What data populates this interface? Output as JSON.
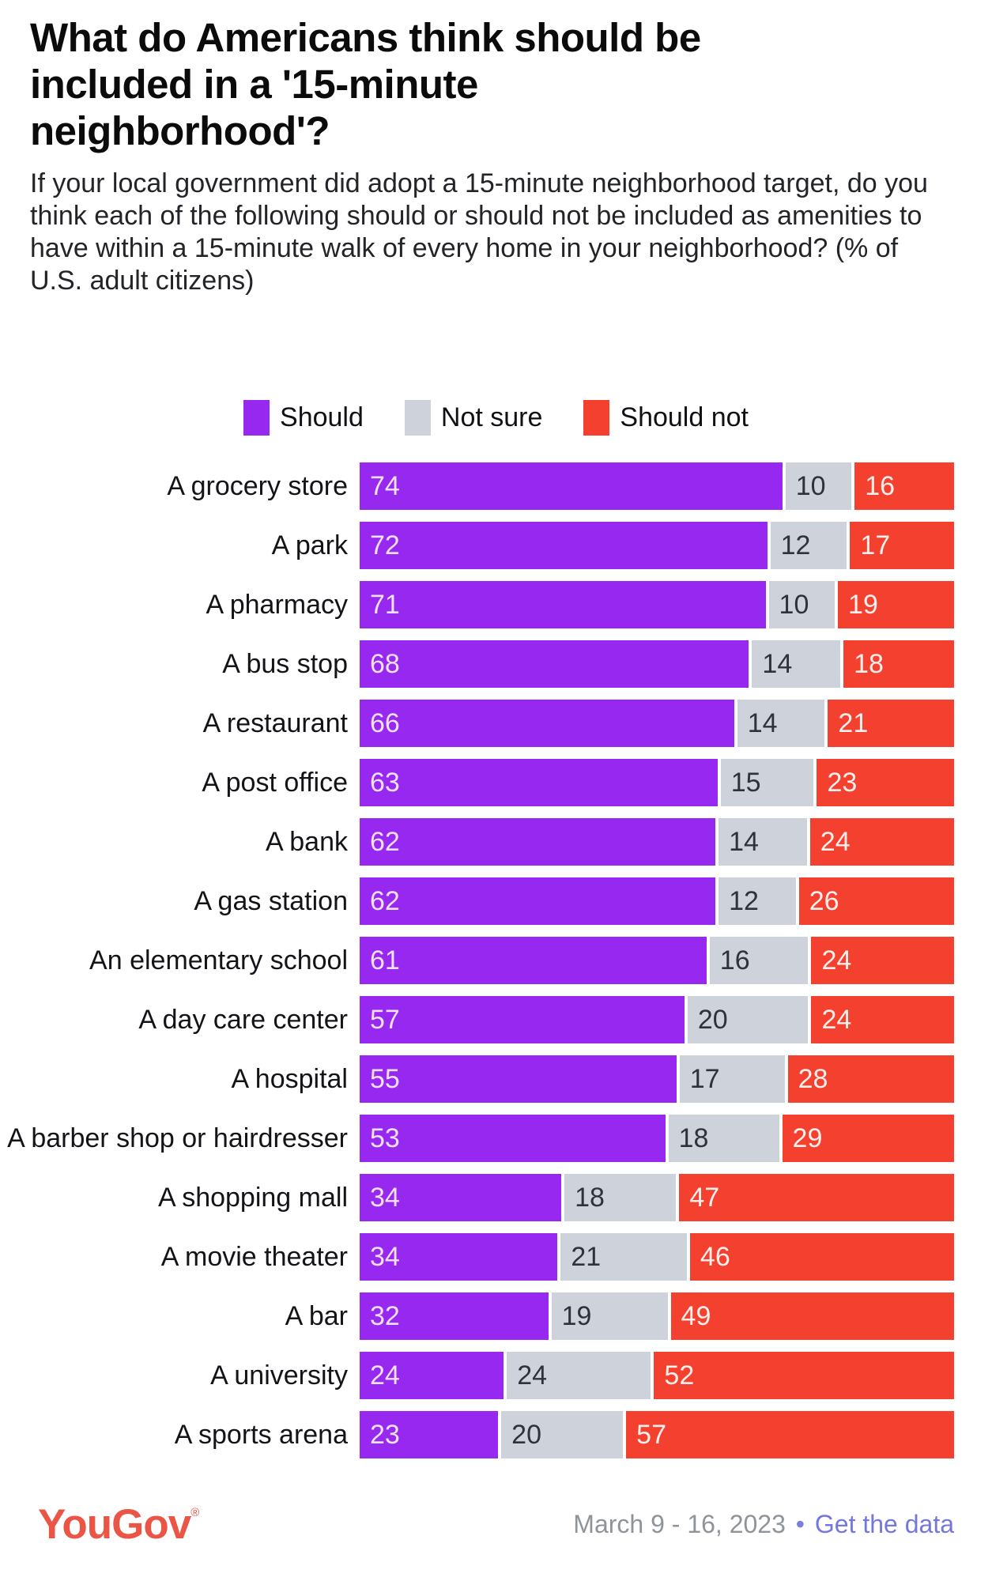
{
  "header": {
    "title_lines": [
      "What do Americans think should be",
      "included in a '15-minute",
      "neighborhood'?"
    ],
    "subtitle": "If your local government did adopt a 15-minute neighborhood target, do you think each of the following should or should not be included as amenities to have within a 15-minute walk of every home in your neighborhood? (% of U.S. adult citizens)"
  },
  "colors": {
    "should": "#9628f0",
    "not_sure": "#cdd2db",
    "should_not": "#f4402f",
    "logo": "#ea5545",
    "link": "#7477db",
    "date_text": "#8f949b"
  },
  "chart_data": {
    "type": "bar",
    "variant": "stacked-horizontal",
    "xlim": [
      0,
      100
    ],
    "unit": "percent",
    "grid": false,
    "legend_position": "top-center",
    "categories": [
      "A grocery store",
      "A park",
      "A pharmacy",
      "A bus stop",
      "A restaurant",
      "A post office",
      "A bank",
      "A gas station",
      "An elementary school",
      "A day care center",
      "A hospital",
      "A barber shop or hairdresser",
      "A shopping mall",
      "A movie theater",
      "A bar",
      "A university",
      "A sports arena"
    ],
    "series": [
      {
        "name": "Should",
        "color": "#9628f0",
        "values": [
          74,
          72,
          71,
          68,
          66,
          63,
          62,
          62,
          61,
          57,
          55,
          53,
          34,
          34,
          32,
          24,
          23
        ]
      },
      {
        "name": "Not sure",
        "color": "#cdd2db",
        "values": [
          10,
          12,
          10,
          14,
          14,
          15,
          14,
          12,
          16,
          20,
          17,
          18,
          18,
          21,
          19,
          24,
          20
        ]
      },
      {
        "name": "Should not",
        "color": "#f4402f",
        "values": [
          16,
          17,
          19,
          18,
          21,
          23,
          24,
          26,
          24,
          24,
          28,
          29,
          47,
          46,
          49,
          52,
          57
        ]
      }
    ]
  },
  "footer": {
    "logo_text": "YouGov",
    "logo_mark": "®",
    "date_range": "March 9 - 16, 2023",
    "separator": "•",
    "link_label": "Get the data"
  }
}
